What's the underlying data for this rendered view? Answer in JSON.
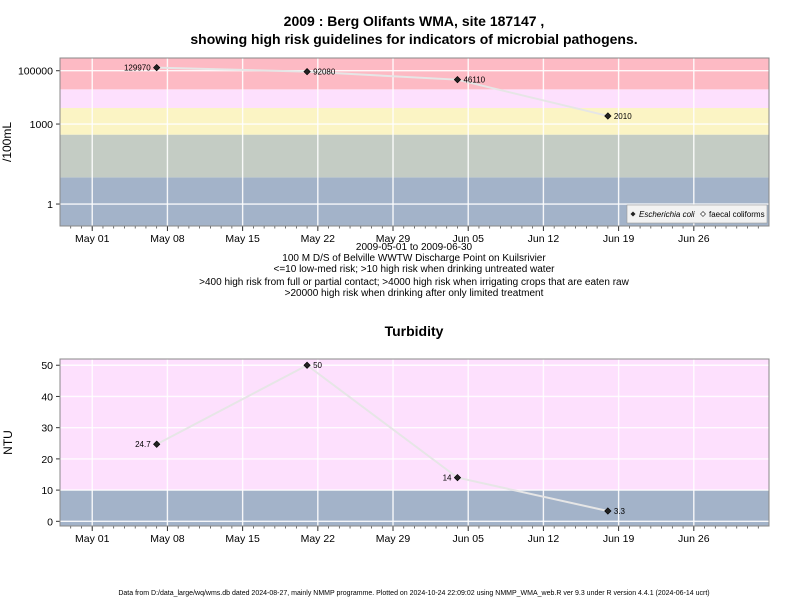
{
  "title_line1": "2009 : Berg Olifants WMA, site 187147 ,",
  "title_line2": "showing high risk guidelines for indicators of microbial pathogens.",
  "date_range": "2009-05-01 to 2009-06-30",
  "site_desc": "100 M D/S of Belville WWTW Discharge Point on Kuilsrivier",
  "guideline_1": "<=10 low-med risk; >10 high risk when drinking untreated water",
  "guideline_2": ">400 high risk from full or partial contact; >4000 high risk when irrigating crops that are eaten raw",
  "guideline_3": ">20000 high risk when drinking after only limited treatment",
  "footer": "Data from D:/data_large/wq/wms.db dated 2024-08-27, mainly NMMP programme. Plotted on 2024-10-24 22:09:02 using NMMP_WMA_web.R ver 9.3 under R version 4.4.1 (2024-06-14 ucrt)",
  "chart_data": [
    {
      "type": "line",
      "ylabel": "/100mL",
      "yscale": "log",
      "ylim": [
        0.15,
        300000
      ],
      "xlim": [
        "2009-04-28",
        "2009-07-03"
      ],
      "x_ticks": [
        "May 01",
        "May 08",
        "May 15",
        "May 22",
        "May 29",
        "Jun 05",
        "Jun 12",
        "Jun 19",
        "Jun 26"
      ],
      "x_tick_dates": [
        "2009-05-01",
        "2009-05-08",
        "2009-05-15",
        "2009-05-22",
        "2009-05-29",
        "2009-06-05",
        "2009-06-12",
        "2009-06-19",
        "2009-06-26"
      ],
      "y_ticks": [
        "1",
        "1000",
        "100000"
      ],
      "y_tick_values": [
        1,
        1000,
        100000
      ],
      "bands": [
        {
          "from": 0.15,
          "to": 10,
          "color": "#a3b3c9"
        },
        {
          "from": 10,
          "to": 400,
          "color": "#c4ccc4"
        },
        {
          "from": 400,
          "to": 4000,
          "color": "#fbf4c4"
        },
        {
          "from": 4000,
          "to": 20000,
          "color": "#fde0fd"
        },
        {
          "from": 20000,
          "to": 300000,
          "color": "#fdbac4"
        }
      ],
      "series": [
        {
          "name": "Escherichia coli",
          "marker": "filled-diamond",
          "x": [
            "2009-05-07",
            "2009-05-21",
            "2009-06-04",
            "2009-06-18"
          ],
          "values": [
            129970,
            92080,
            46110,
            2010
          ],
          "labels": [
            "129970",
            "92080",
            "46110",
            "2010"
          ]
        },
        {
          "name": "faecal coliforms",
          "marker": "open-diamond",
          "x": [],
          "values": []
        }
      ],
      "legend_position": "bottom-right"
    },
    {
      "type": "line",
      "title": "Turbidity",
      "ylabel": "NTU",
      "ylim": [
        -1.5,
        52
      ],
      "xlim": [
        "2009-04-28",
        "2009-07-03"
      ],
      "x_ticks": [
        "May 01",
        "May 08",
        "May 15",
        "May 22",
        "May 29",
        "Jun 05",
        "Jun 12",
        "Jun 19",
        "Jun 26"
      ],
      "x_tick_dates": [
        "2009-05-01",
        "2009-05-08",
        "2009-05-15",
        "2009-05-22",
        "2009-05-29",
        "2009-06-05",
        "2009-06-12",
        "2009-06-19",
        "2009-06-26"
      ],
      "y_ticks": [
        "0",
        "10",
        "20",
        "30",
        "40",
        "50"
      ],
      "y_tick_values": [
        0,
        10,
        20,
        30,
        40,
        50
      ],
      "bands": [
        {
          "from": -1.5,
          "to": 10,
          "color": "#a3b3c9"
        },
        {
          "from": 10,
          "to": 52,
          "color": "#fde0fd"
        }
      ],
      "series": [
        {
          "name": "Turbidity",
          "x": [
            "2009-05-07",
            "2009-05-21",
            "2009-06-04",
            "2009-06-18"
          ],
          "values": [
            24.7,
            50,
            14,
            3.3
          ],
          "labels": [
            "24.7",
            "50",
            "14",
            "3.3"
          ]
        }
      ]
    }
  ]
}
